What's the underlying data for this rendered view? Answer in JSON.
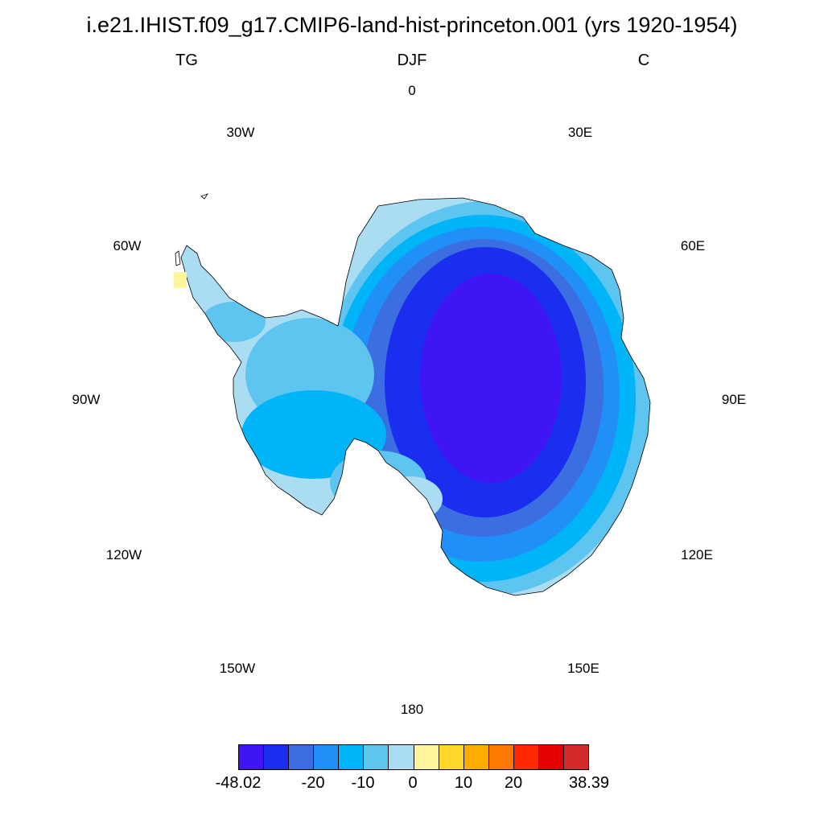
{
  "header": {
    "title": "i.e21.IHIST.f09_g17.CMIP6-land-hist-princeton.001 (yrs 1920-1954)",
    "variable": "TG",
    "season": "DJF",
    "units": "C"
  },
  "longitude_labels": [
    {
      "id": "lon-0",
      "text": "0"
    },
    {
      "id": "lon-30e",
      "text": "30E"
    },
    {
      "id": "lon-60e",
      "text": "60E"
    },
    {
      "id": "lon-90e",
      "text": "90E"
    },
    {
      "id": "lon-120e",
      "text": "120E"
    },
    {
      "id": "lon-150e",
      "text": "150E"
    },
    {
      "id": "lon-180",
      "text": "180"
    },
    {
      "id": "lon-150w",
      "text": "150W"
    },
    {
      "id": "lon-120w",
      "text": "120W"
    },
    {
      "id": "lon-90w",
      "text": "90W"
    },
    {
      "id": "lon-60w",
      "text": "60W"
    },
    {
      "id": "lon-30w",
      "text": "30W"
    }
  ],
  "colorbar": {
    "colors": [
      "#3f14f5",
      "#1a2ef0",
      "#3b6ee0",
      "#2090f8",
      "#00b4f8",
      "#5ec4f0",
      "#aadcf2",
      "#fff59c",
      "#ffd72a",
      "#ffac00",
      "#ff7800",
      "#ff2a00",
      "#e60000",
      "#d42a2a"
    ],
    "labels": [
      {
        "id": "min",
        "text": "-48.02"
      },
      {
        "id": "m20",
        "text": "-20"
      },
      {
        "id": "m10",
        "text": "-10"
      },
      {
        "id": "zero",
        "text": "0"
      },
      {
        "id": "p10",
        "text": "10"
      },
      {
        "id": "p20",
        "text": "20"
      },
      {
        "id": "max",
        "text": "38.39"
      }
    ]
  },
  "map": {
    "region": "Antarctica",
    "projection": "south-polar-stereographic",
    "coastline_color": "#000000",
    "fill_classes": [
      "light-blue",
      "sky-blue",
      "cyan-blue",
      "azure",
      "steel-blue",
      "blue",
      "violet-blue",
      "pale-yellow"
    ]
  }
}
